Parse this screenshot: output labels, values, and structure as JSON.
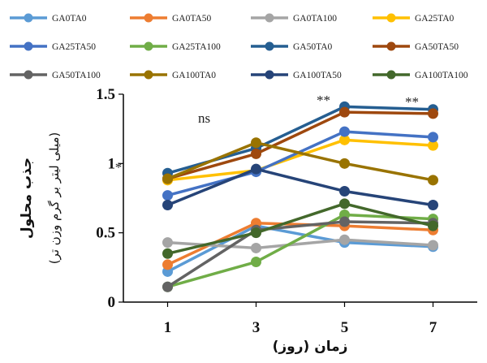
{
  "chart_data": {
    "type": "line",
    "title": "",
    "xlabel": "زمان (روز)",
    "ylabel": "جذب محلول",
    "ylabel_units": "(میلی لیتر بر گرم وزن تر)",
    "x": [
      1,
      3,
      5,
      7
    ],
    "x_tick_labels": [
      "1",
      "3",
      "5",
      "7"
    ],
    "ylim": [
      0,
      1.5
    ],
    "y_ticks": [
      0,
      0.5,
      1,
      1.5
    ],
    "y_tick_labels": [
      "0",
      "0.5",
      "1",
      "1.5"
    ],
    "grid": false,
    "legend_position": "top",
    "annotations": [
      {
        "text": "ns",
        "x": 3
      },
      {
        "text": "**",
        "x": 5
      },
      {
        "text": "**",
        "x": 7
      }
    ],
    "y_axis_marker": "*",
    "series": [
      {
        "name": "GA0TA0",
        "color": "#5B9BD5",
        "values": [
          0.22,
          0.55,
          0.43,
          0.4
        ]
      },
      {
        "name": "GA0TA50",
        "color": "#ED7D31",
        "values": [
          0.27,
          0.57,
          0.55,
          0.52
        ]
      },
      {
        "name": "GA0TA100",
        "color": "#A5A5A5",
        "values": [
          0.43,
          0.39,
          0.45,
          0.41
        ]
      },
      {
        "name": "GA25TA0",
        "color": "#FFC000",
        "values": [
          0.88,
          0.95,
          1.17,
          1.13
        ]
      },
      {
        "name": "GA25TA50",
        "color": "#4472C4",
        "values": [
          0.77,
          0.94,
          1.23,
          1.19
        ]
      },
      {
        "name": "GA25TA100",
        "color": "#70AD47",
        "values": [
          0.11,
          0.29,
          0.63,
          0.6
        ]
      },
      {
        "name": "GA50TA0",
        "color": "#255E91",
        "values": [
          0.93,
          1.11,
          1.41,
          1.39
        ]
      },
      {
        "name": "GA50TA50",
        "color": "#9E480E",
        "values": [
          0.89,
          1.07,
          1.37,
          1.36
        ]
      },
      {
        "name": "GA50TA100",
        "color": "#636363",
        "values": [
          0.11,
          0.52,
          0.58,
          0.57
        ]
      },
      {
        "name": "GA100TA0",
        "color": "#997300",
        "values": [
          0.89,
          1.15,
          1.0,
          0.88
        ]
      },
      {
        "name": "GA100TA50",
        "color": "#264478",
        "values": [
          0.7,
          0.96,
          0.8,
          0.7
        ]
      },
      {
        "name": "GA100TA100",
        "color": "#43682B",
        "values": [
          0.35,
          0.5,
          0.71,
          0.55
        ]
      }
    ]
  }
}
